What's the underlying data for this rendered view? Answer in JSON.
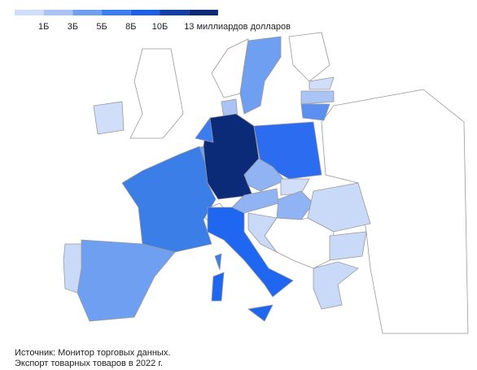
{
  "legend": {
    "colors": [
      "#d0def9",
      "#a9c4f5",
      "#6f9ff0",
      "#3b7cf0",
      "#1d5fe6",
      "#123fa8",
      "#0b2a78"
    ],
    "labels": [
      "1Б",
      "3Б",
      "5Б",
      "8Б",
      "10Б",
      "13 миллиардов долларов"
    ]
  },
  "source": {
    "line1": "Источник: Монитор торговых данных.",
    "line2": "Экспорт товарных товаров в 2022 г."
  }
}
